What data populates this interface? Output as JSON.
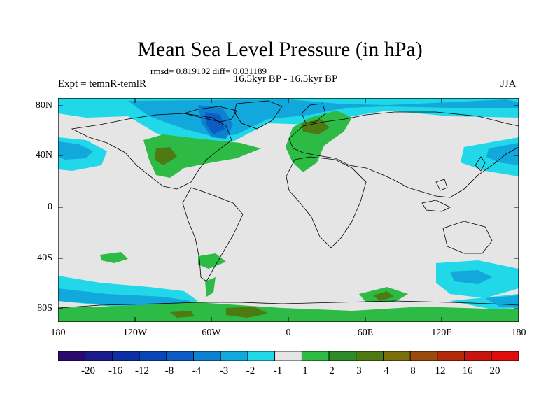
{
  "title": "Mean Sea Level Pressure (in hPa)",
  "stats": "rmsd= 0.819102 diff= 0.031189",
  "experiment": "Expt = temnR-temlR",
  "period": "16.5kyr BP - 16.5kyr BP",
  "season": "JJA",
  "axes": {
    "lat_labels": [
      "80N",
      "40N",
      "0",
      "40S",
      "80S"
    ],
    "lon_labels": [
      "180",
      "120W",
      "60W",
      "0",
      "60E",
      "120E",
      "180"
    ]
  },
  "colorbar": {
    "labels": [
      "-20",
      "-16",
      "-12",
      "-8",
      "-4",
      "-3",
      "-2",
      "-1",
      "1",
      "2",
      "3",
      "4",
      "8",
      "12",
      "16",
      "20"
    ],
    "colors": [
      "#2a0a6e",
      "#1a1c8c",
      "#0d2fa6",
      "#0a46b4",
      "#0c5cc4",
      "#0d80d0",
      "#12a8dc",
      "#20d8e8",
      "#e5e5e5",
      "#2dbb46",
      "#2f8a28",
      "#4e7a14",
      "#7a6e0a",
      "#9a4a0a",
      "#b22a0a",
      "#c8140e",
      "#e00c0c"
    ]
  },
  "map_colors": {
    "background": "#e5e5e5",
    "ocean_lines": "#000000"
  }
}
